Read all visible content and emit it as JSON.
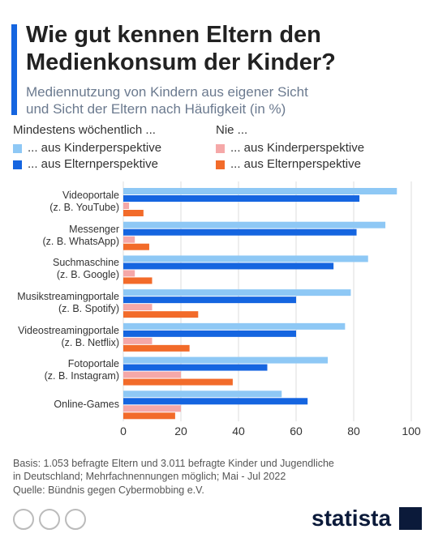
{
  "chart_data": {
    "type": "bar",
    "orientation": "horizontal",
    "title": "Wie gut kennen Eltern den\nMedienkonsum der Kinder?",
    "subtitle": "Mediennutzung von Kindern aus eigener Sicht\nund Sicht der Eltern nach Häufigkeit (in %)",
    "legend_groups": [
      "Mindestens wöchentlich ...",
      "Nie ..."
    ],
    "categories": [
      "Videoportale\n(z. B. YouTube)",
      "Messenger\n(z. B. WhatsApp)",
      "Suchmaschine\n(z. B. Google)",
      "Musikstreamingportale\n(z. B. Spotify)",
      "Videostreamingportale\n(z. B. Netflix)",
      "Fotoportale\n(z. B. Instagram)",
      "Online-Games"
    ],
    "series": [
      {
        "name": "... aus Kinderperspektive",
        "group": 0,
        "color": "#8ec8f5",
        "values": [
          95,
          91,
          85,
          79,
          77,
          71,
          55
        ]
      },
      {
        "name": "... aus Elternperspektive",
        "group": 0,
        "color": "#1565e0",
        "values": [
          82,
          81,
          73,
          60,
          60,
          50,
          64
        ]
      },
      {
        "name": "... aus Kinderperspektive",
        "group": 1,
        "color": "#f5a8a8",
        "values": [
          2,
          4,
          4,
          10,
          10,
          20,
          20
        ]
      },
      {
        "name": "... aus Elternperspektive",
        "group": 1,
        "color": "#f26b2a",
        "values": [
          7,
          9,
          10,
          26,
          23,
          38,
          18
        ]
      }
    ],
    "xlim": [
      0,
      100
    ],
    "xticks": [
      0,
      20,
      40,
      60,
      80,
      100
    ],
    "grid": true,
    "note": "Basis: 1.053 befragte Eltern und 3.011 befragte Kinder und Jugendliche\nin Deutschland; Mehrfachnennungen möglich; Mai - Jul 2022",
    "source": "Quelle: Bündnis gegen Cybermobbing e.V.",
    "brand": "statista"
  }
}
